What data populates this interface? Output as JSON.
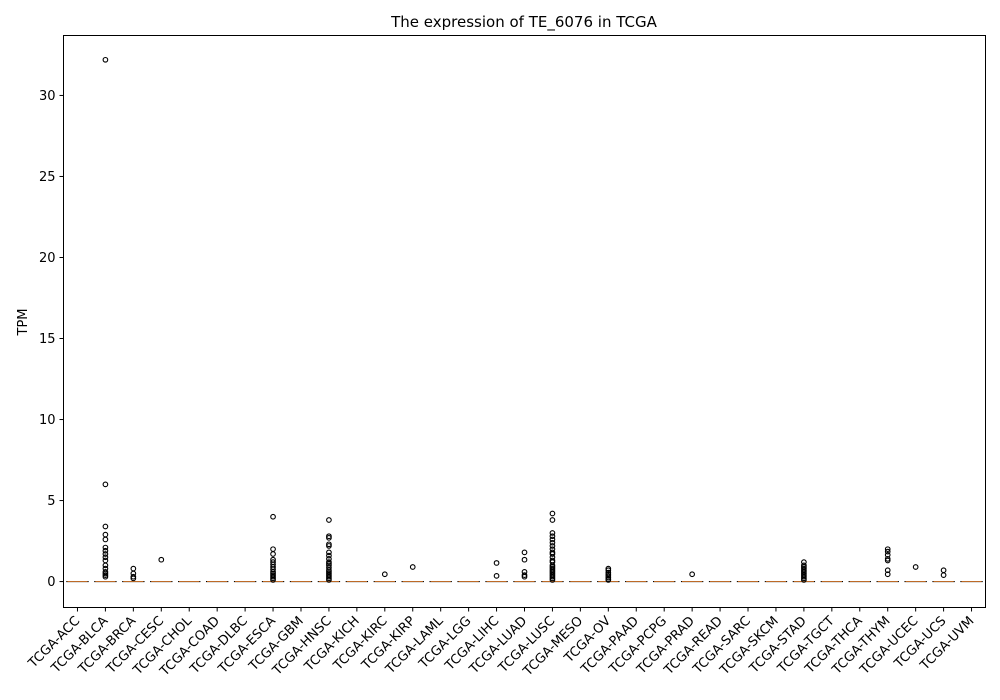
{
  "chart_data": {
    "type": "box",
    "title": "The expression of TE_6076 in TCGA",
    "xlabel": "",
    "ylabel": "TPM",
    "ylim": [
      -1.6,
      33.7
    ],
    "yticks": [
      0,
      5,
      10,
      15,
      20,
      25,
      30
    ],
    "categories": [
      "TCGA-ACC",
      "TCGA-BLCA",
      "TCGA-BRCA",
      "TCGA-CESC",
      "TCGA-CHOL",
      "TCGA-COAD",
      "TCGA-DLBC",
      "TCGA-ESCA",
      "TCGA-GBM",
      "TCGA-HNSC",
      "TCGA-KICH",
      "TCGA-KIRC",
      "TCGA-KIRP",
      "TCGA-LAML",
      "TCGA-LGG",
      "TCGA-LIHC",
      "TCGA-LUAD",
      "TCGA-LUSC",
      "TCGA-MESO",
      "TCGA-OV",
      "TCGA-PAAD",
      "TCGA-PCPG",
      "TCGA-PRAD",
      "TCGA-READ",
      "TCGA-SARC",
      "TCGA-SKCM",
      "TCGA-STAD",
      "TCGA-TGCT",
      "TCGA-THCA",
      "TCGA-THYM",
      "TCGA-UCEC",
      "TCGA-UCS",
      "TCGA-UVM"
    ],
    "median": [
      0,
      0,
      0,
      0,
      0,
      0,
      0,
      0,
      0,
      0,
      0,
      0,
      0,
      0,
      0,
      0,
      0,
      0,
      0,
      0,
      0,
      0,
      0,
      0,
      0,
      0,
      0,
      0,
      0,
      0,
      0,
      0,
      0
    ],
    "outliers": [
      [],
      [
        32.2,
        6.0,
        3.4,
        2.9,
        2.6,
        2.1,
        1.9,
        1.7,
        1.5,
        1.3,
        1.0,
        0.8,
        0.6,
        0.5,
        0.4,
        0.3
      ],
      [
        0.8,
        0.5,
        0.3,
        0.2
      ],
      [
        1.35
      ],
      [],
      [],
      [],
      [
        4.0,
        2.0,
        1.7,
        1.35,
        1.2,
        1.05,
        0.9,
        0.75,
        0.6,
        0.5,
        0.4,
        0.3,
        0.2,
        0.1
      ],
      [],
      [
        3.8,
        2.8,
        2.7,
        2.3,
        2.2,
        1.8,
        1.6,
        1.4,
        1.2,
        1.1,
        1.0,
        0.85,
        0.7,
        0.6,
        0.5,
        0.4,
        0.3,
        0.2,
        0.1
      ],
      [],
      [
        0.45
      ],
      [
        0.9
      ],
      [],
      [],
      [
        1.15,
        0.35
      ],
      [
        1.8,
        1.35,
        0.6,
        0.4,
        0.3
      ],
      [
        4.2,
        3.8,
        3.0,
        2.8,
        2.6,
        2.4,
        2.2,
        2.0,
        1.8,
        1.7,
        1.5,
        1.3,
        1.2,
        1.0,
        0.9,
        0.8,
        0.7,
        0.6,
        0.5,
        0.4,
        0.3,
        0.2,
        0.1
      ],
      [],
      [
        0.8,
        0.7,
        0.55,
        0.45,
        0.35,
        0.25,
        0.15,
        0.1
      ],
      [],
      [],
      [
        0.45
      ],
      [],
      [],
      [],
      [
        1.2,
        1.0,
        0.9,
        0.8,
        0.7,
        0.6,
        0.5,
        0.4,
        0.3,
        0.2,
        0.1
      ],
      [],
      [],
      [
        2.0,
        1.85,
        1.65,
        1.4,
        1.3,
        0.7,
        0.45
      ],
      [
        0.9
      ],
      [
        0.7,
        0.4
      ],
      []
    ],
    "grid": false,
    "legend": "none"
  }
}
